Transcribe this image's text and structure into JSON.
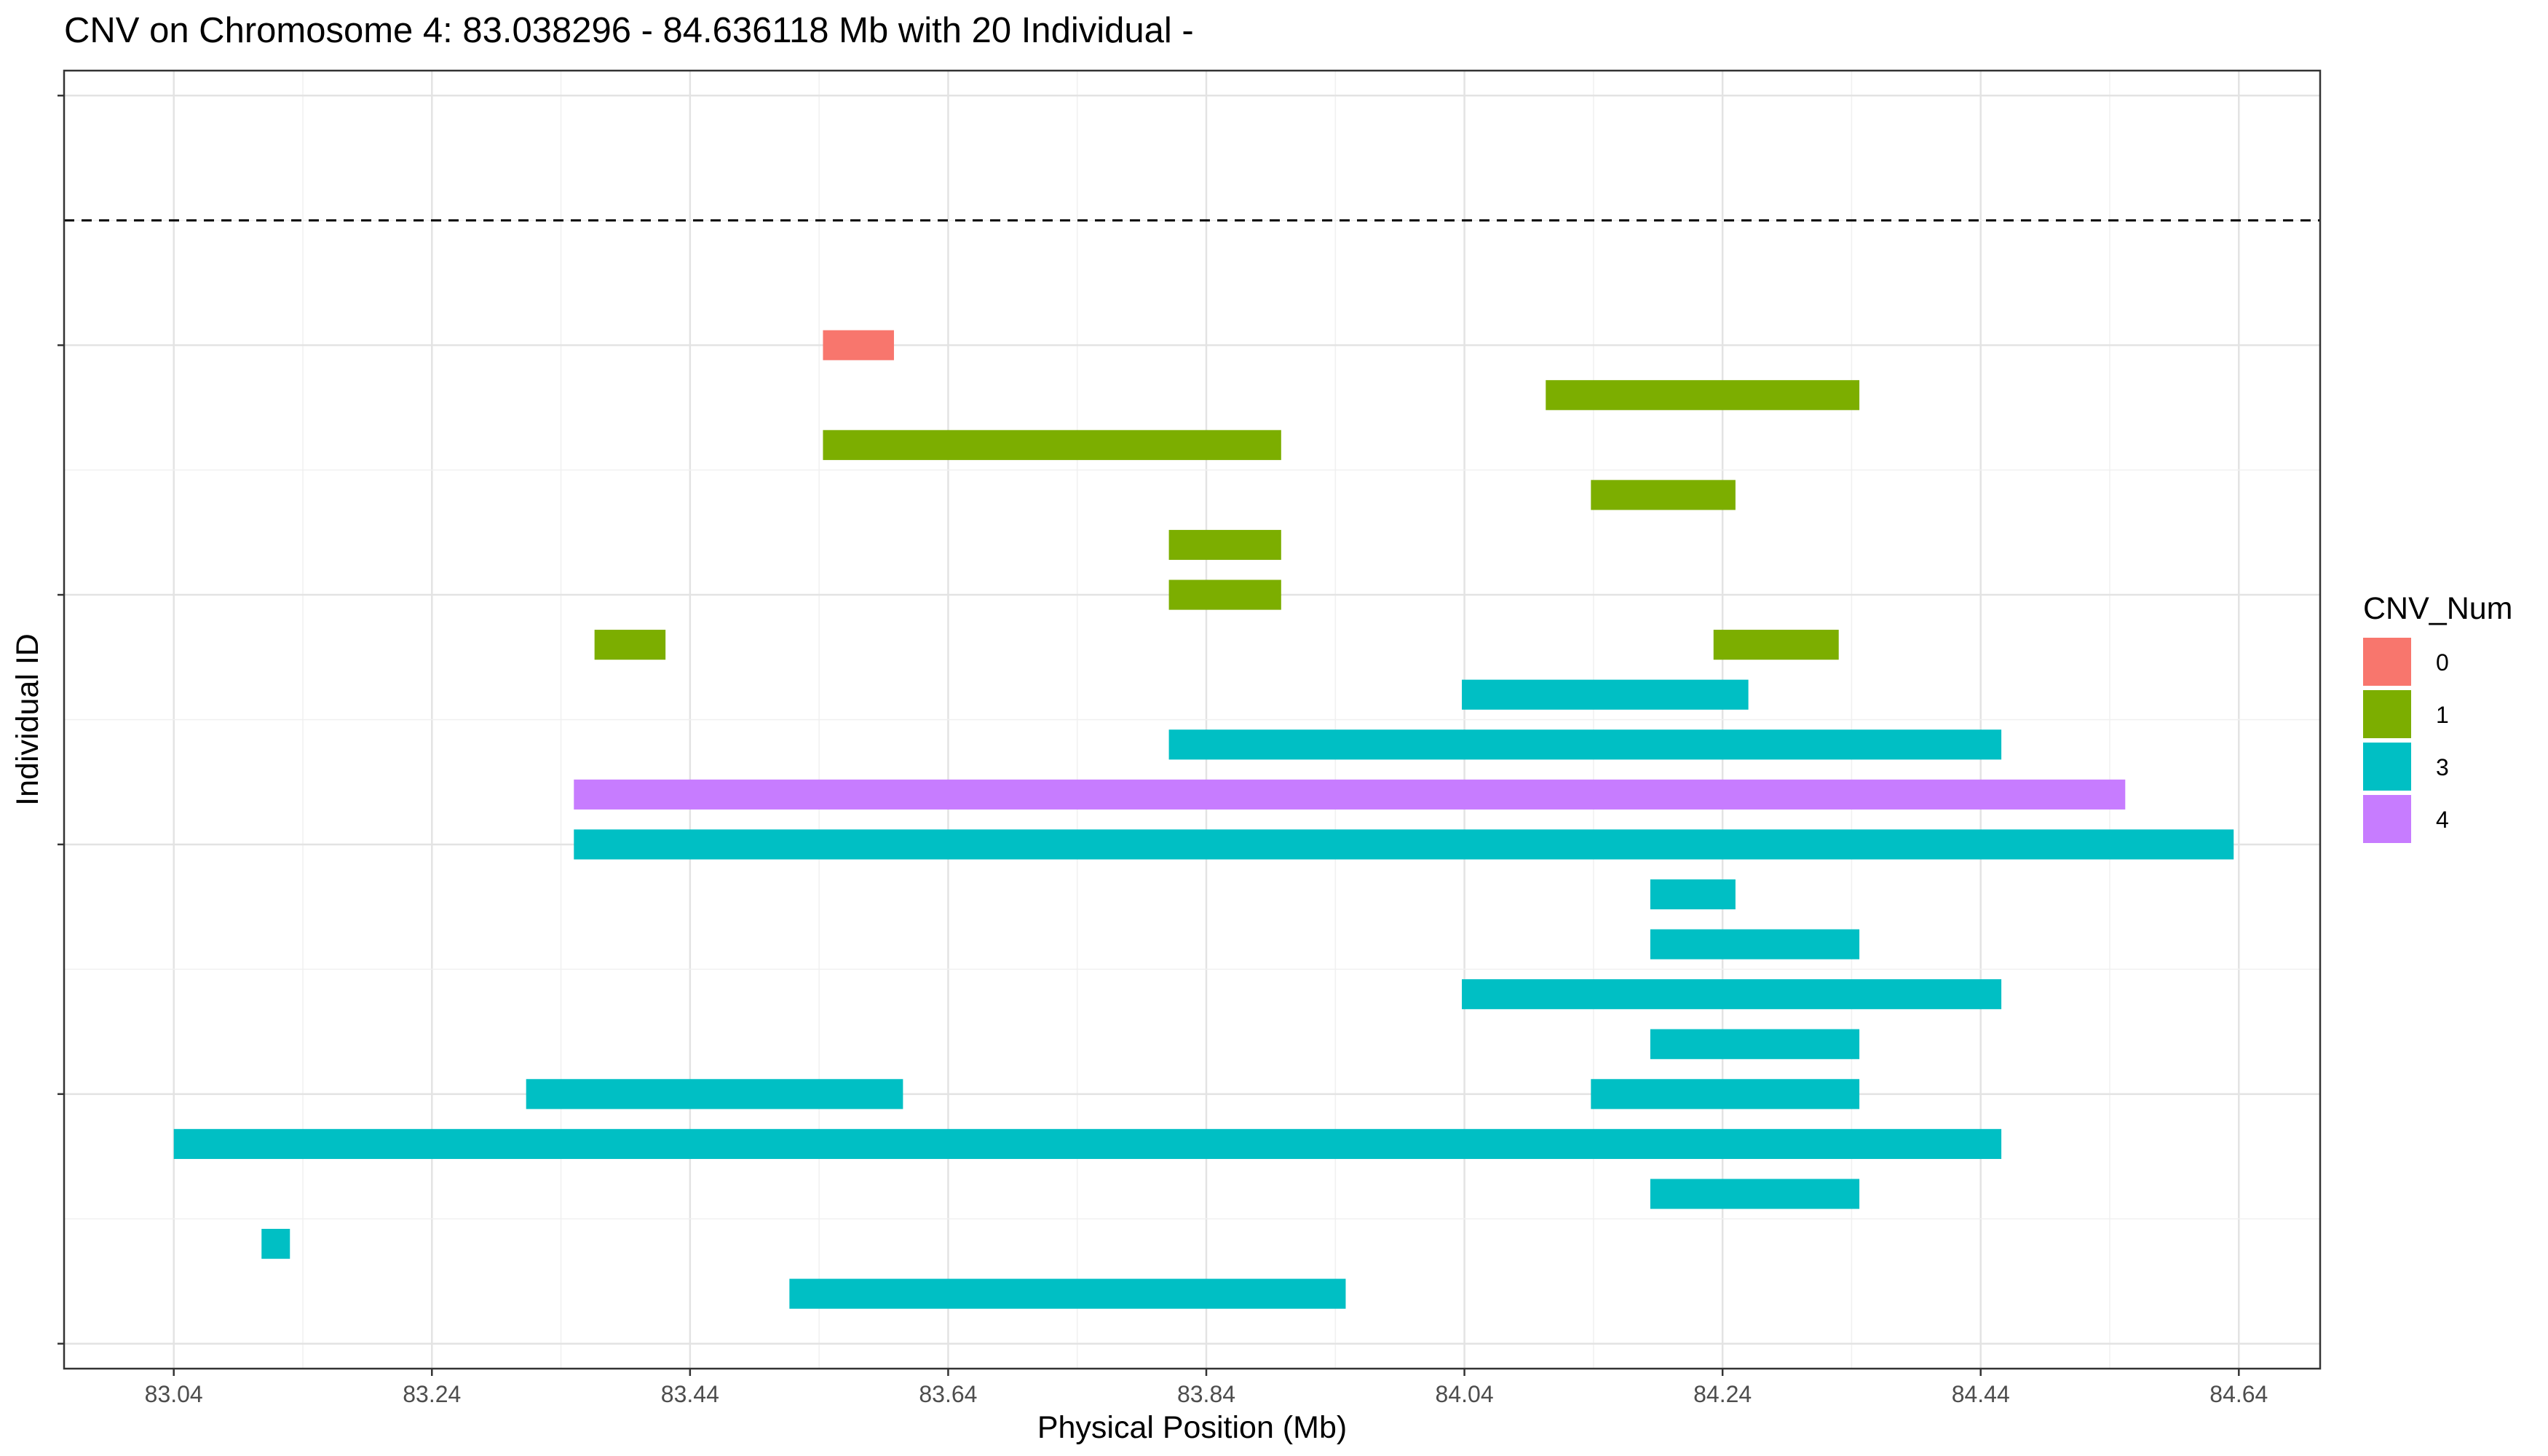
{
  "chart_data": {
    "type": "bar",
    "orientation": "horizontal-ranges",
    "title": "CNV on Chromosome 4: 83.038296 - 84.636118 Mb with 20 Individual -",
    "xlabel": "Physical Position (Mb)",
    "ylabel": "Individual ID",
    "xlim": [
      82.955,
      84.703
    ],
    "x_ticks": [
      "83.04",
      "83.24",
      "83.44",
      "83.64",
      "83.84",
      "84.04",
      "84.24",
      "84.44",
      "84.64"
    ],
    "x_tick_values": [
      83.04,
      83.24,
      83.44,
      83.64,
      83.84,
      84.04,
      84.24,
      84.44,
      84.64
    ],
    "grid": true,
    "reference_line": {
      "style": "dashed",
      "row": 22.5
    },
    "rows_total": 26,
    "legend": {
      "title": "CNV_Num",
      "position": "right",
      "items": [
        {
          "label": "0",
          "color": "#F8766D"
        },
        {
          "label": "1",
          "color": "#7CAE00"
        },
        {
          "label": "3",
          "color": "#00BFC4"
        },
        {
          "label": "4",
          "color": "#C77CFF"
        }
      ]
    },
    "segments": [
      {
        "row": 1,
        "start": 83.517,
        "end": 83.948,
        "cnv": "3"
      },
      {
        "row": 2,
        "start": 83.108,
        "end": 83.13,
        "cnv": "3"
      },
      {
        "row": 3,
        "start": 84.184,
        "end": 84.346,
        "cnv": "3"
      },
      {
        "row": 4,
        "start": 83.04,
        "end": 84.456,
        "cnv": "3"
      },
      {
        "row": 5,
        "start": 83.313,
        "end": 83.605,
        "cnv": "3"
      },
      {
        "row": 5,
        "start": 84.138,
        "end": 84.346,
        "cnv": "3"
      },
      {
        "row": 6,
        "start": 84.184,
        "end": 84.346,
        "cnv": "3"
      },
      {
        "row": 7,
        "start": 84.038,
        "end": 84.456,
        "cnv": "3"
      },
      {
        "row": 8,
        "start": 84.184,
        "end": 84.346,
        "cnv": "3"
      },
      {
        "row": 9,
        "start": 84.184,
        "end": 84.25,
        "cnv": "3"
      },
      {
        "row": 10,
        "start": 83.35,
        "end": 84.636,
        "cnv": "3"
      },
      {
        "row": 11,
        "start": 83.35,
        "end": 84.552,
        "cnv": "4"
      },
      {
        "row": 12,
        "start": 83.811,
        "end": 84.456,
        "cnv": "3"
      },
      {
        "row": 13,
        "start": 84.038,
        "end": 84.26,
        "cnv": "3"
      },
      {
        "row": 14,
        "start": 83.366,
        "end": 83.421,
        "cnv": "1"
      },
      {
        "row": 14,
        "start": 84.233,
        "end": 84.33,
        "cnv": "1"
      },
      {
        "row": 15,
        "start": 83.811,
        "end": 83.898,
        "cnv": "1"
      },
      {
        "row": 16,
        "start": 83.811,
        "end": 83.898,
        "cnv": "1"
      },
      {
        "row": 17,
        "start": 84.138,
        "end": 84.25,
        "cnv": "1"
      },
      {
        "row": 18,
        "start": 83.543,
        "end": 83.898,
        "cnv": "1"
      },
      {
        "row": 19,
        "start": 84.103,
        "end": 84.346,
        "cnv": "1"
      },
      {
        "row": 20,
        "start": 83.543,
        "end": 83.598,
        "cnv": "0"
      }
    ]
  }
}
